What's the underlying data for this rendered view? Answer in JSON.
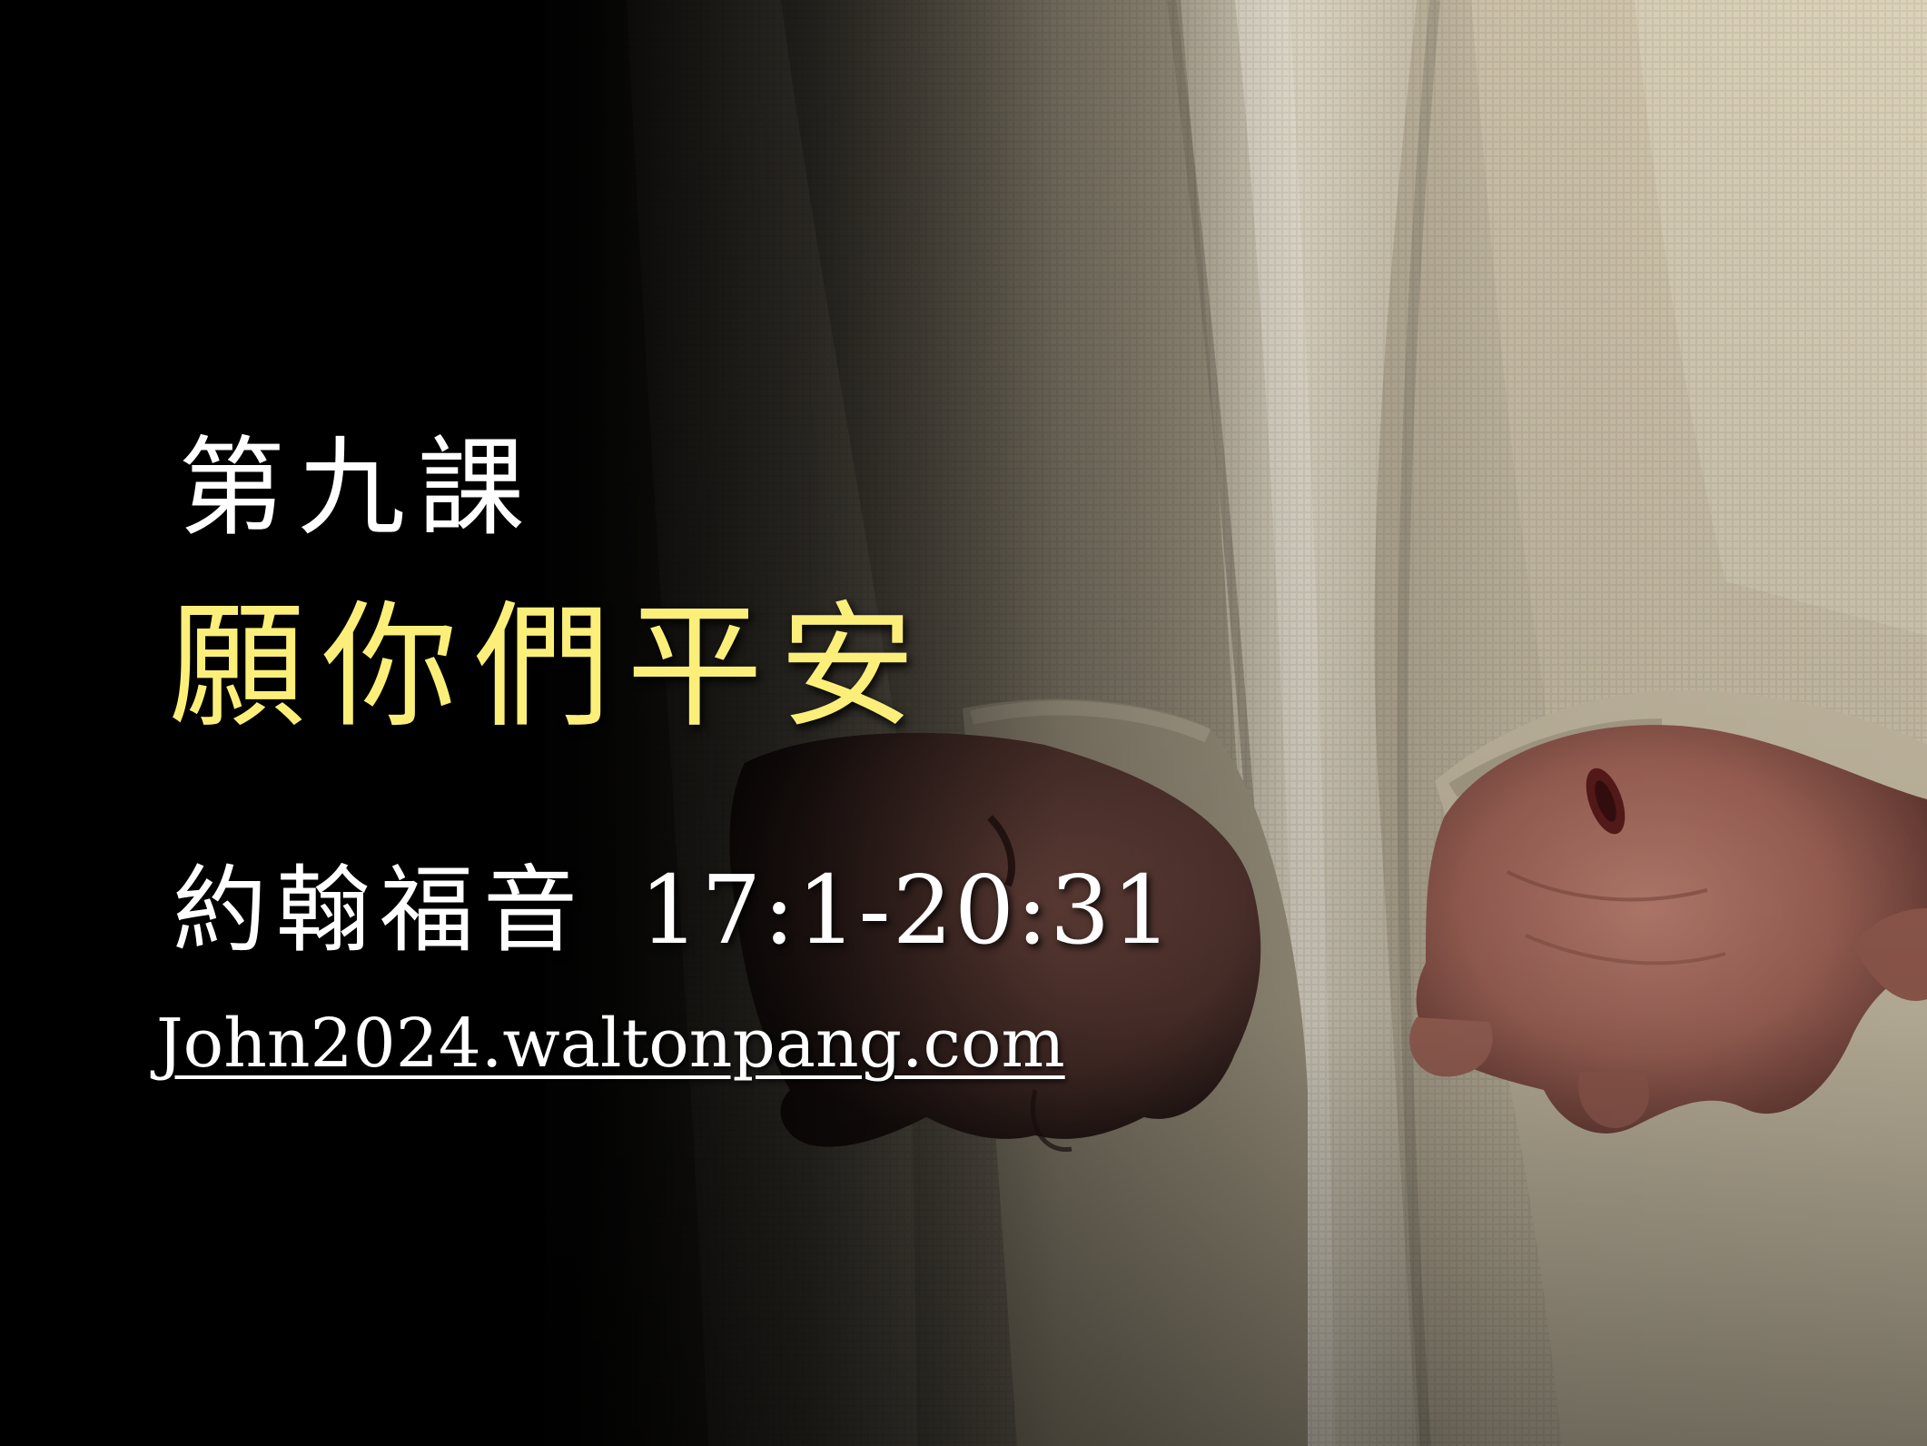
{
  "slide": {
    "lesson_label": "第九課",
    "title": "願你們平安",
    "scripture_book": "約翰福音",
    "scripture_reference": "17:1-20:31",
    "website": "John2024.waltonpang.com"
  },
  "colors": {
    "background": "#050505",
    "title_yellow": "#fbef7a",
    "text_white": "#ffffff",
    "robe_light": "#d8cdb6",
    "robe_shadow": "#6e6656",
    "skin": "#b9796c"
  },
  "photo": {
    "subject": "robed figure with outstretched wounded hands"
  }
}
